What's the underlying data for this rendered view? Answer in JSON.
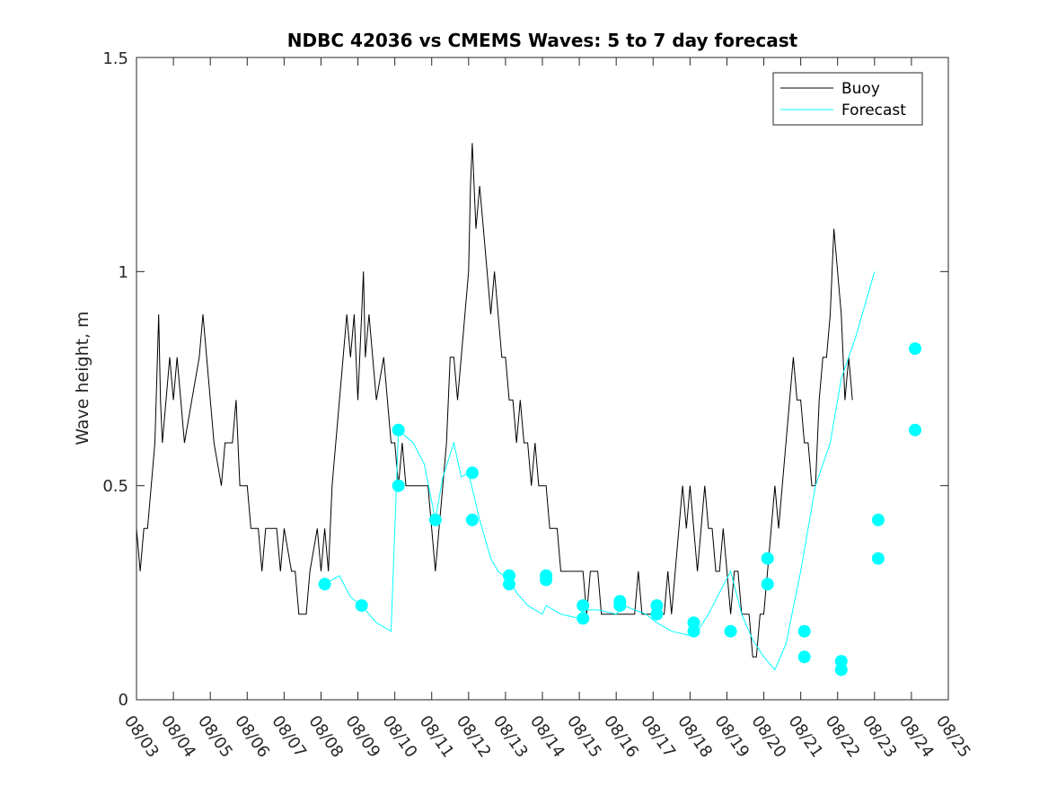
{
  "chart_data": {
    "type": "line",
    "title": "NDBC 42036 vs CMEMS Waves: 5 to 7 day forecast",
    "xlabel": "",
    "ylabel": "Wave height, m",
    "xlim": [
      0,
      22
    ],
    "ylim": [
      0,
      1.5
    ],
    "grid": false,
    "legend_position": "top-right",
    "x_tick_labels": [
      "08/03",
      "08/04",
      "08/05",
      "08/06",
      "08/07",
      "08/08",
      "08/09",
      "08/10",
      "08/11",
      "08/12",
      "08/13",
      "08/14",
      "08/15",
      "08/16",
      "08/17",
      "08/18",
      "08/19",
      "08/20",
      "08/21",
      "08/22",
      "08/23",
      "08/24",
      "08/25"
    ],
    "y_ticks": [
      0,
      0.5,
      1,
      1.5
    ],
    "y_tick_labels": [
      "0",
      "0.5",
      "1",
      "1.5"
    ],
    "colors": {
      "buoy": "#000000",
      "forecast": "#00FFFF"
    },
    "series": [
      {
        "name": "Buoy",
        "color": "#000000",
        "points": [
          [
            0,
            0.4
          ],
          [
            0.1,
            0.3
          ],
          [
            0.2,
            0.4
          ],
          [
            0.3,
            0.4
          ],
          [
            0.4,
            0.5
          ],
          [
            0.5,
            0.6
          ],
          [
            0.6,
            0.9
          ],
          [
            0.65,
            0.7
          ],
          [
            0.7,
            0.6
          ],
          [
            0.8,
            0.7
          ],
          [
            0.9,
            0.8
          ],
          [
            1.0,
            0.7
          ],
          [
            1.1,
            0.8
          ],
          [
            1.2,
            0.7
          ],
          [
            1.3,
            0.6
          ],
          [
            1.5,
            0.7
          ],
          [
            1.7,
            0.8
          ],
          [
            1.8,
            0.9
          ],
          [
            1.9,
            0.8
          ],
          [
            2.0,
            0.7
          ],
          [
            2.1,
            0.6
          ],
          [
            2.3,
            0.5
          ],
          [
            2.4,
            0.6
          ],
          [
            2.6,
            0.6
          ],
          [
            2.7,
            0.7
          ],
          [
            2.8,
            0.5
          ],
          [
            3.0,
            0.5
          ],
          [
            3.1,
            0.4
          ],
          [
            3.3,
            0.4
          ],
          [
            3.4,
            0.3
          ],
          [
            3.5,
            0.4
          ],
          [
            3.8,
            0.4
          ],
          [
            3.9,
            0.3
          ],
          [
            4.0,
            0.4
          ],
          [
            4.2,
            0.3
          ],
          [
            4.3,
            0.3
          ],
          [
            4.4,
            0.2
          ],
          [
            4.6,
            0.2
          ],
          [
            4.7,
            0.3
          ],
          [
            4.9,
            0.4
          ],
          [
            5.0,
            0.3
          ],
          [
            5.1,
            0.4
          ],
          [
            5.2,
            0.3
          ],
          [
            5.3,
            0.5
          ],
          [
            5.4,
            0.6
          ],
          [
            5.5,
            0.7
          ],
          [
            5.6,
            0.8
          ],
          [
            5.7,
            0.9
          ],
          [
            5.8,
            0.8
          ],
          [
            5.9,
            0.9
          ],
          [
            6.0,
            0.7
          ],
          [
            6.1,
            0.9
          ],
          [
            6.15,
            1.0
          ],
          [
            6.2,
            0.8
          ],
          [
            6.3,
            0.9
          ],
          [
            6.4,
            0.8
          ],
          [
            6.5,
            0.7
          ],
          [
            6.7,
            0.8
          ],
          [
            6.8,
            0.7
          ],
          [
            6.9,
            0.6
          ],
          [
            7.0,
            0.6
          ],
          [
            7.1,
            0.5
          ],
          [
            7.2,
            0.6
          ],
          [
            7.3,
            0.5
          ],
          [
            7.4,
            0.5
          ],
          [
            7.5,
            0.5
          ],
          [
            7.6,
            0.5
          ],
          [
            7.8,
            0.5
          ],
          [
            7.9,
            0.5
          ],
          [
            8.0,
            0.4
          ],
          [
            8.1,
            0.3
          ],
          [
            8.2,
            0.4
          ],
          [
            8.3,
            0.5
          ],
          [
            8.4,
            0.6
          ],
          [
            8.5,
            0.8
          ],
          [
            8.6,
            0.8
          ],
          [
            8.7,
            0.7
          ],
          [
            8.8,
            0.8
          ],
          [
            8.9,
            0.9
          ],
          [
            9.0,
            1.0
          ],
          [
            9.05,
            1.2
          ],
          [
            9.1,
            1.3
          ],
          [
            9.2,
            1.1
          ],
          [
            9.3,
            1.2
          ],
          [
            9.4,
            1.1
          ],
          [
            9.5,
            1.0
          ],
          [
            9.6,
            0.9
          ],
          [
            9.7,
            1.0
          ],
          [
            9.8,
            0.9
          ],
          [
            9.9,
            0.8
          ],
          [
            10.0,
            0.8
          ],
          [
            10.1,
            0.7
          ],
          [
            10.2,
            0.7
          ],
          [
            10.3,
            0.6
          ],
          [
            10.4,
            0.7
          ],
          [
            10.5,
            0.6
          ],
          [
            10.6,
            0.6
          ],
          [
            10.7,
            0.5
          ],
          [
            10.8,
            0.6
          ],
          [
            10.9,
            0.5
          ],
          [
            11.0,
            0.5
          ],
          [
            11.1,
            0.5
          ],
          [
            11.2,
            0.4
          ],
          [
            11.4,
            0.4
          ],
          [
            11.5,
            0.3
          ],
          [
            11.8,
            0.3
          ],
          [
            12.0,
            0.3
          ],
          [
            12.1,
            0.3
          ],
          [
            12.2,
            0.2
          ],
          [
            12.3,
            0.3
          ],
          [
            12.5,
            0.3
          ],
          [
            12.6,
            0.2
          ],
          [
            12.8,
            0.2
          ],
          [
            13.0,
            0.2
          ],
          [
            13.2,
            0.2
          ],
          [
            13.4,
            0.2
          ],
          [
            13.5,
            0.2
          ],
          [
            13.6,
            0.3
          ],
          [
            13.7,
            0.2
          ],
          [
            13.9,
            0.2
          ],
          [
            14.0,
            0.2
          ],
          [
            14.2,
            0.2
          ],
          [
            14.3,
            0.2
          ],
          [
            14.4,
            0.3
          ],
          [
            14.5,
            0.2
          ],
          [
            14.6,
            0.3
          ],
          [
            14.7,
            0.4
          ],
          [
            14.8,
            0.5
          ],
          [
            14.9,
            0.4
          ],
          [
            15.0,
            0.5
          ],
          [
            15.1,
            0.4
          ],
          [
            15.2,
            0.3
          ],
          [
            15.3,
            0.4
          ],
          [
            15.4,
            0.5
          ],
          [
            15.5,
            0.4
          ],
          [
            15.6,
            0.4
          ],
          [
            15.7,
            0.3
          ],
          [
            15.8,
            0.3
          ],
          [
            15.9,
            0.4
          ],
          [
            16.0,
            0.3
          ],
          [
            16.1,
            0.2
          ],
          [
            16.2,
            0.3
          ],
          [
            16.3,
            0.3
          ],
          [
            16.4,
            0.2
          ],
          [
            16.5,
            0.2
          ],
          [
            16.6,
            0.2
          ],
          [
            16.7,
            0.1
          ],
          [
            16.8,
            0.1
          ],
          [
            16.9,
            0.2
          ],
          [
            17.0,
            0.2
          ],
          [
            17.1,
            0.3
          ],
          [
            17.2,
            0.4
          ],
          [
            17.3,
            0.5
          ],
          [
            17.4,
            0.4
          ],
          [
            17.5,
            0.5
          ],
          [
            17.6,
            0.6
          ],
          [
            17.7,
            0.7
          ],
          [
            17.8,
            0.8
          ],
          [
            17.9,
            0.7
          ],
          [
            18.0,
            0.7
          ],
          [
            18.1,
            0.6
          ],
          [
            18.2,
            0.6
          ],
          [
            18.3,
            0.5
          ],
          [
            18.4,
            0.5
          ],
          [
            18.5,
            0.7
          ],
          [
            18.6,
            0.8
          ],
          [
            18.7,
            0.8
          ],
          [
            18.8,
            0.9
          ],
          [
            18.9,
            1.1
          ],
          [
            19.0,
            1.0
          ],
          [
            19.1,
            0.9
          ],
          [
            19.2,
            0.7
          ],
          [
            19.3,
            0.8
          ],
          [
            19.4,
            0.7
          ]
        ]
      },
      {
        "name": "Forecast",
        "color": "#00FFFF",
        "points": [
          [
            5.1,
            0.27
          ],
          [
            5.5,
            0.29
          ],
          [
            5.8,
            0.24
          ],
          [
            6.1,
            0.22
          ],
          [
            6.5,
            0.18
          ],
          [
            6.9,
            0.16
          ],
          [
            7.1,
            0.63
          ],
          [
            7.5,
            0.6
          ],
          [
            7.8,
            0.55
          ],
          [
            8.1,
            0.42
          ],
          [
            8.3,
            0.52
          ],
          [
            8.6,
            0.6
          ],
          [
            8.8,
            0.52
          ],
          [
            9.0,
            0.53
          ],
          [
            9.3,
            0.42
          ],
          [
            9.6,
            0.33
          ],
          [
            9.8,
            0.3
          ],
          [
            10.1,
            0.28
          ],
          [
            10.3,
            0.25
          ],
          [
            10.6,
            0.22
          ],
          [
            11.0,
            0.2
          ],
          [
            11.1,
            0.22
          ],
          [
            11.5,
            0.2
          ],
          [
            12.0,
            0.19
          ],
          [
            12.1,
            0.21
          ],
          [
            12.5,
            0.21
          ],
          [
            13.0,
            0.2
          ],
          [
            13.2,
            0.22
          ],
          [
            13.8,
            0.2
          ],
          [
            14.1,
            0.18
          ],
          [
            14.5,
            0.16
          ],
          [
            15.0,
            0.15
          ],
          [
            15.2,
            0.16
          ],
          [
            15.5,
            0.2
          ],
          [
            15.8,
            0.25
          ],
          [
            16.1,
            0.3
          ],
          [
            16.4,
            0.2
          ],
          [
            16.7,
            0.14
          ],
          [
            17.0,
            0.1
          ],
          [
            17.3,
            0.07
          ],
          [
            17.6,
            0.13
          ],
          [
            18.0,
            0.3
          ],
          [
            18.4,
            0.5
          ],
          [
            18.8,
            0.6
          ],
          [
            19.1,
            0.75
          ],
          [
            19.5,
            0.85
          ],
          [
            20.0,
            1.0
          ]
        ]
      }
    ],
    "forecast_markers": [
      [
        5.1,
        0.27
      ],
      [
        6.1,
        0.22
      ],
      [
        7.1,
        0.63
      ],
      [
        7.1,
        0.5
      ],
      [
        8.1,
        0.42
      ],
      [
        9.1,
        0.53
      ],
      [
        9.1,
        0.42
      ],
      [
        10.1,
        0.29
      ],
      [
        10.1,
        0.27
      ],
      [
        11.1,
        0.29
      ],
      [
        11.1,
        0.28
      ],
      [
        12.1,
        0.22
      ],
      [
        12.1,
        0.19
      ],
      [
        13.1,
        0.23
      ],
      [
        13.1,
        0.22
      ],
      [
        14.1,
        0.22
      ],
      [
        14.1,
        0.2
      ],
      [
        15.1,
        0.18
      ],
      [
        15.1,
        0.16
      ],
      [
        16.1,
        0.16
      ],
      [
        17.1,
        0.33
      ],
      [
        17.1,
        0.27
      ],
      [
        18.1,
        0.16
      ],
      [
        18.1,
        0.1
      ],
      [
        19.1,
        0.09
      ],
      [
        19.1,
        0.07
      ],
      [
        20.1,
        0.42
      ],
      [
        20.1,
        0.33
      ],
      [
        21.1,
        0.82
      ],
      [
        21.1,
        0.63
      ]
    ]
  }
}
